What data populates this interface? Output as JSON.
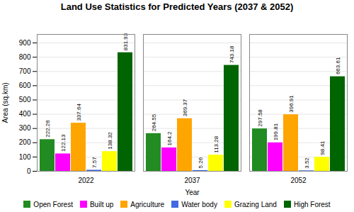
{
  "chart_data": {
    "type": "bar",
    "title": "Land Use Statistics for Predicted Years (2037 & 2052)",
    "xlabel": "Year",
    "ylabel": "Area (sq.km)",
    "categories": [
      "2022",
      "2037",
      "2052"
    ],
    "series": [
      {
        "name": "Open Forest",
        "color": "#228B22",
        "values": [
          222.26,
          264.55,
          297.58
        ]
      },
      {
        "name": "Built up",
        "color": "#FF00FF",
        "values": [
          122.13,
          164.2,
          199.81
        ]
      },
      {
        "name": "Agriculture",
        "color": "#FFA500",
        "values": [
          337.64,
          369.37,
          396.91
        ]
      },
      {
        "name": "Water body",
        "color": "#4169E1",
        "values": [
          7.57,
          5.26,
          3.52
        ]
      },
      {
        "name": "Grazing Land",
        "color": "#FFFF00",
        "values": [
          138.32,
          113.28,
          98.41
        ]
      },
      {
        "name": "High Forest",
        "color": "#006400",
        "values": [
          831.93,
          743.18,
          663.61
        ]
      }
    ],
    "ylim": [
      0,
      960
    ],
    "yticks": [
      0,
      100,
      200,
      300,
      400,
      500,
      600,
      700,
      800,
      900
    ],
    "grid": true,
    "data_labels": true,
    "legend": "bottom"
  }
}
